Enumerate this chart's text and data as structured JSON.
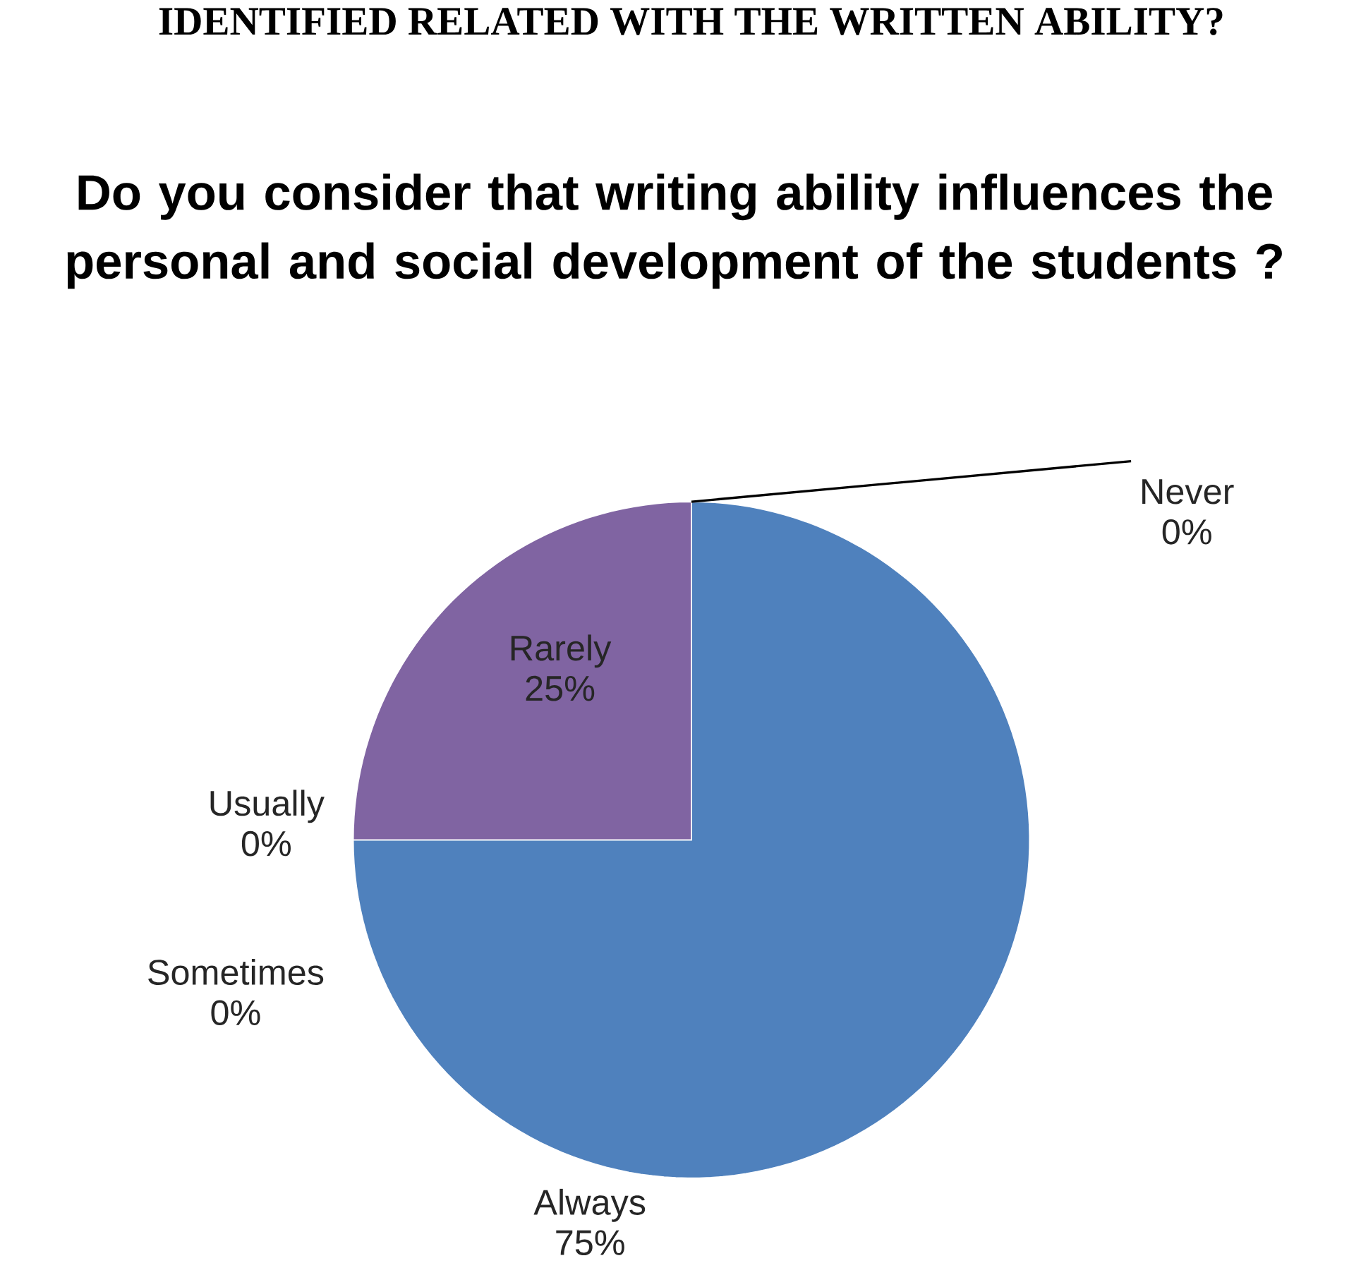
{
  "chart_data": {
    "type": "pie",
    "title": "Do you consider that writing ability  influences the personal and social development of the students ?",
    "annotations": [
      "IDENTIFIED RELATED WITH THE WRITTEN ABILITY?"
    ],
    "categories": [
      "Always",
      "Usually",
      "Sometimes",
      "Rarely",
      "Never"
    ],
    "values": [
      75,
      0,
      0,
      25,
      0
    ],
    "value_labels": [
      "75%",
      "0%",
      "0%",
      "25%",
      "0%"
    ],
    "colors": [
      "#4f81bd",
      "#c0504d",
      "#9bbb59",
      "#8064a2",
      "#4bacc6"
    ]
  }
}
